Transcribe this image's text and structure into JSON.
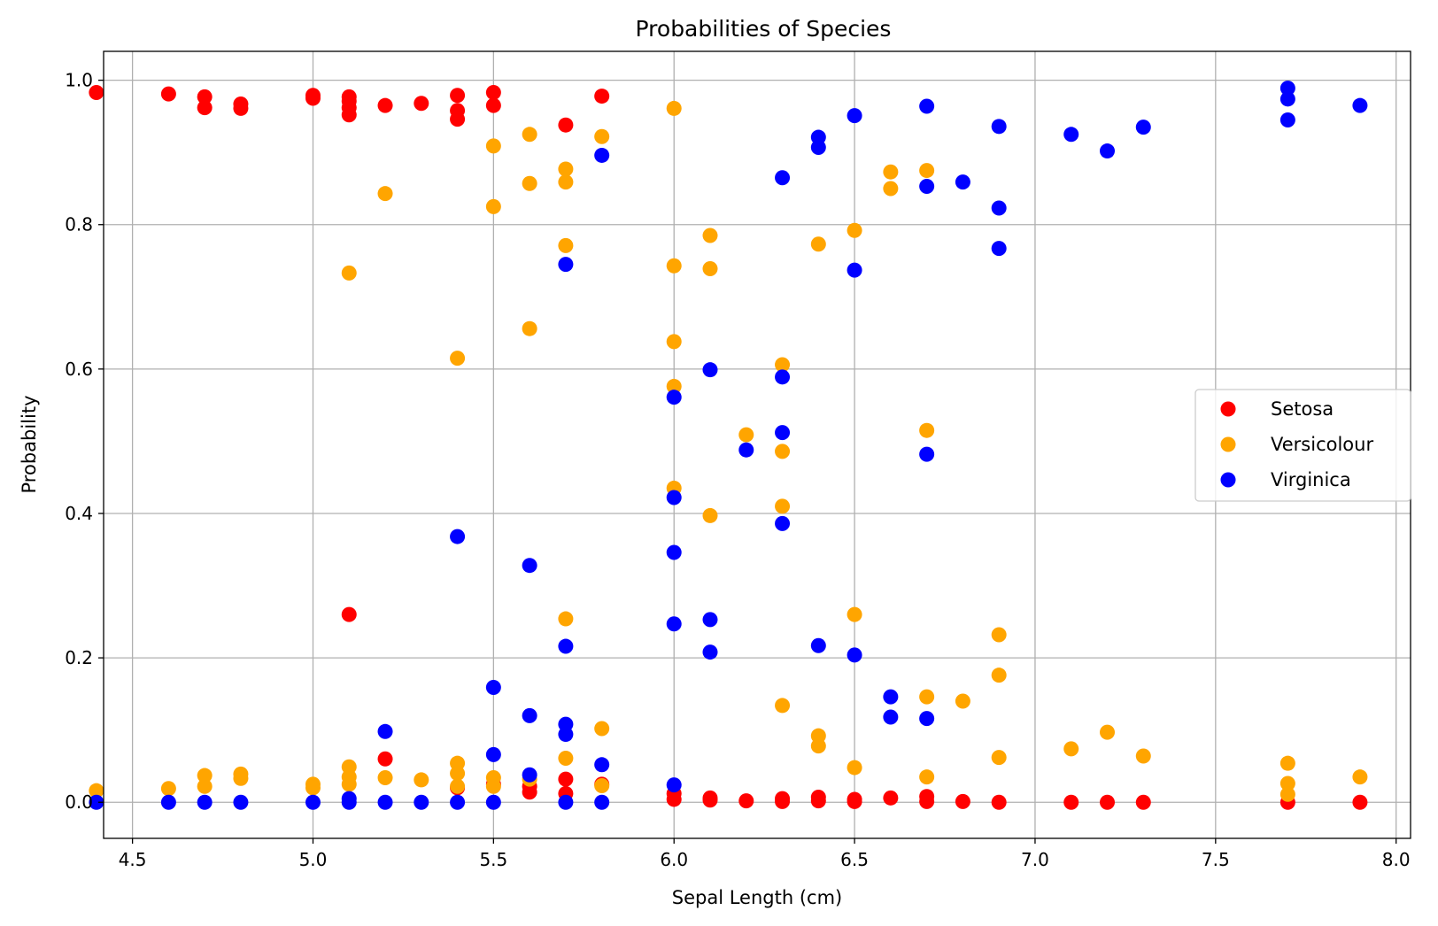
{
  "chart_data": {
    "type": "scatter",
    "title": "Probabilities of Species",
    "xlabel": "Sepal Length (cm)",
    "ylabel": "Probability",
    "xlim": [
      4.42,
      8.04
    ],
    "ylim": [
      -0.05,
      1.04
    ],
    "xticks": [
      4.5,
      5.0,
      5.5,
      6.0,
      6.5,
      7.0,
      7.5,
      8.0
    ],
    "xtick_labels": [
      "4.5",
      "5.0",
      "5.5",
      "6.0",
      "6.5",
      "7.0",
      "7.5",
      "8.0"
    ],
    "yticks": [
      0.0,
      0.2,
      0.4,
      0.6,
      0.8,
      1.0
    ],
    "ytick_labels": [
      "0.0",
      "0.2",
      "0.4",
      "0.6",
      "0.8",
      "1.0"
    ],
    "grid": true,
    "legend_position": "center-right",
    "series": [
      {
        "name": "Setosa",
        "color": "#ff0000",
        "points": [
          [
            4.4,
            0.983
          ],
          [
            4.6,
            0.981
          ],
          [
            4.7,
            0.977
          ],
          [
            4.7,
            0.962
          ],
          [
            4.8,
            0.967
          ],
          [
            4.8,
            0.961
          ],
          [
            5.0,
            0.979
          ],
          [
            5.0,
            0.975
          ],
          [
            5.1,
            0.977
          ],
          [
            5.1,
            0.971
          ],
          [
            5.1,
            0.962
          ],
          [
            5.1,
            0.952
          ],
          [
            5.1,
            0.26
          ],
          [
            5.2,
            0.965
          ],
          [
            5.2,
            0.06
          ],
          [
            5.3,
            0.968
          ],
          [
            5.4,
            0.979
          ],
          [
            5.4,
            0.958
          ],
          [
            5.4,
            0.946
          ],
          [
            5.4,
            0.02
          ],
          [
            5.5,
            0.983
          ],
          [
            5.5,
            0.965
          ],
          [
            5.5,
            0.025
          ],
          [
            5.6,
            0.022
          ],
          [
            5.6,
            0.014
          ],
          [
            5.7,
            0.938
          ],
          [
            5.7,
            0.032
          ],
          [
            5.7,
            0.012
          ],
          [
            5.8,
            0.978
          ],
          [
            5.8,
            0.025
          ],
          [
            6.0,
            0.012
          ],
          [
            6.0,
            0.004
          ],
          [
            6.1,
            0.006
          ],
          [
            6.1,
            0.003
          ],
          [
            6.2,
            0.002
          ],
          [
            6.3,
            0.005
          ],
          [
            6.3,
            0.001
          ],
          [
            6.4,
            0.007
          ],
          [
            6.4,
            0.002
          ],
          [
            6.5,
            0.004
          ],
          [
            6.5,
            0.001
          ],
          [
            6.6,
            0.006
          ],
          [
            6.7,
            0.008
          ],
          [
            6.7,
            0.001
          ],
          [
            6.8,
            0.001
          ],
          [
            6.9,
            0.0
          ],
          [
            7.1,
            0.0
          ],
          [
            7.2,
            0.0
          ],
          [
            7.3,
            0.0
          ],
          [
            7.7,
            0.0
          ],
          [
            7.9,
            0.0
          ]
        ]
      },
      {
        "name": "Versicolour",
        "color": "#ffa500",
        "points": [
          [
            4.4,
            0.016
          ],
          [
            4.6,
            0.019
          ],
          [
            4.7,
            0.037
          ],
          [
            4.7,
            0.022
          ],
          [
            4.8,
            0.039
          ],
          [
            4.8,
            0.033
          ],
          [
            5.0,
            0.025
          ],
          [
            5.0,
            0.02
          ],
          [
            5.1,
            0.733
          ],
          [
            5.1,
            0.049
          ],
          [
            5.1,
            0.035
          ],
          [
            5.1,
            0.025
          ],
          [
            5.2,
            0.843
          ],
          [
            5.2,
            0.034
          ],
          [
            5.3,
            0.031
          ],
          [
            5.4,
            0.615
          ],
          [
            5.4,
            0.054
          ],
          [
            5.4,
            0.04
          ],
          [
            5.4,
            0.022
          ],
          [
            5.5,
            0.909
          ],
          [
            5.5,
            0.825
          ],
          [
            5.5,
            0.034
          ],
          [
            5.5,
            0.022
          ],
          [
            5.6,
            0.925
          ],
          [
            5.6,
            0.857
          ],
          [
            5.6,
            0.656
          ],
          [
            5.6,
            0.032
          ],
          [
            5.7,
            0.877
          ],
          [
            5.7,
            0.859
          ],
          [
            5.7,
            0.771
          ],
          [
            5.7,
            0.254
          ],
          [
            5.7,
            0.061
          ],
          [
            5.8,
            0.922
          ],
          [
            5.8,
            0.102
          ],
          [
            5.8,
            0.023
          ],
          [
            6.0,
            0.961
          ],
          [
            6.0,
            0.743
          ],
          [
            6.0,
            0.638
          ],
          [
            6.0,
            0.576
          ],
          [
            6.0,
            0.435
          ],
          [
            6.1,
            0.785
          ],
          [
            6.1,
            0.739
          ],
          [
            6.1,
            0.397
          ],
          [
            6.2,
            0.509
          ],
          [
            6.3,
            0.606
          ],
          [
            6.3,
            0.486
          ],
          [
            6.3,
            0.41
          ],
          [
            6.3,
            0.134
          ],
          [
            6.4,
            0.773
          ],
          [
            6.4,
            0.092
          ],
          [
            6.4,
            0.078
          ],
          [
            6.5,
            0.792
          ],
          [
            6.5,
            0.26
          ],
          [
            6.5,
            0.048
          ],
          [
            6.6,
            0.873
          ],
          [
            6.6,
            0.85
          ],
          [
            6.7,
            0.875
          ],
          [
            6.7,
            0.515
          ],
          [
            6.7,
            0.146
          ],
          [
            6.7,
            0.035
          ],
          [
            6.8,
            0.14
          ],
          [
            6.9,
            0.232
          ],
          [
            6.9,
            0.176
          ],
          [
            6.9,
            0.062
          ],
          [
            7.1,
            0.074
          ],
          [
            7.2,
            0.097
          ],
          [
            7.3,
            0.064
          ],
          [
            7.7,
            0.054
          ],
          [
            7.7,
            0.026
          ],
          [
            7.7,
            0.011
          ],
          [
            7.9,
            0.035
          ]
        ]
      },
      {
        "name": "Virginica",
        "color": "#0000ff",
        "points": [
          [
            4.4,
            0.0
          ],
          [
            4.6,
            0.0
          ],
          [
            4.7,
            0.0
          ],
          [
            4.8,
            0.0
          ],
          [
            5.0,
            0.0
          ],
          [
            5.1,
            0.005
          ],
          [
            5.1,
            0.0
          ],
          [
            5.2,
            0.098
          ],
          [
            5.2,
            0.0
          ],
          [
            5.3,
            0.0
          ],
          [
            5.4,
            0.368
          ],
          [
            5.4,
            0.0
          ],
          [
            5.5,
            0.159
          ],
          [
            5.5,
            0.066
          ],
          [
            5.5,
            0.0
          ],
          [
            5.6,
            0.328
          ],
          [
            5.6,
            0.12
          ],
          [
            5.6,
            0.038
          ],
          [
            5.7,
            0.745
          ],
          [
            5.7,
            0.216
          ],
          [
            5.7,
            0.108
          ],
          [
            5.7,
            0.094
          ],
          [
            5.7,
            0.0
          ],
          [
            5.8,
            0.896
          ],
          [
            5.8,
            0.052
          ],
          [
            5.8,
            0.0
          ],
          [
            6.0,
            0.561
          ],
          [
            6.0,
            0.422
          ],
          [
            6.0,
            0.346
          ],
          [
            6.0,
            0.247
          ],
          [
            6.0,
            0.024
          ],
          [
            6.1,
            0.599
          ],
          [
            6.1,
            0.253
          ],
          [
            6.1,
            0.208
          ],
          [
            6.2,
            0.488
          ],
          [
            6.3,
            0.865
          ],
          [
            6.3,
            0.589
          ],
          [
            6.3,
            0.512
          ],
          [
            6.3,
            0.386
          ],
          [
            6.4,
            0.921
          ],
          [
            6.4,
            0.907
          ],
          [
            6.4,
            0.217
          ],
          [
            6.5,
            0.951
          ],
          [
            6.5,
            0.737
          ],
          [
            6.5,
            0.204
          ],
          [
            6.6,
            0.146
          ],
          [
            6.6,
            0.118
          ],
          [
            6.7,
            0.964
          ],
          [
            6.7,
            0.853
          ],
          [
            6.7,
            0.482
          ],
          [
            6.7,
            0.116
          ],
          [
            6.8,
            0.859
          ],
          [
            6.9,
            0.936
          ],
          [
            6.9,
            0.823
          ],
          [
            6.9,
            0.767
          ],
          [
            7.1,
            0.925
          ],
          [
            7.2,
            0.902
          ],
          [
            7.3,
            0.935
          ],
          [
            7.7,
            0.989
          ],
          [
            7.7,
            0.974
          ],
          [
            7.7,
            0.945
          ],
          [
            7.9,
            0.965
          ]
        ]
      }
    ]
  }
}
